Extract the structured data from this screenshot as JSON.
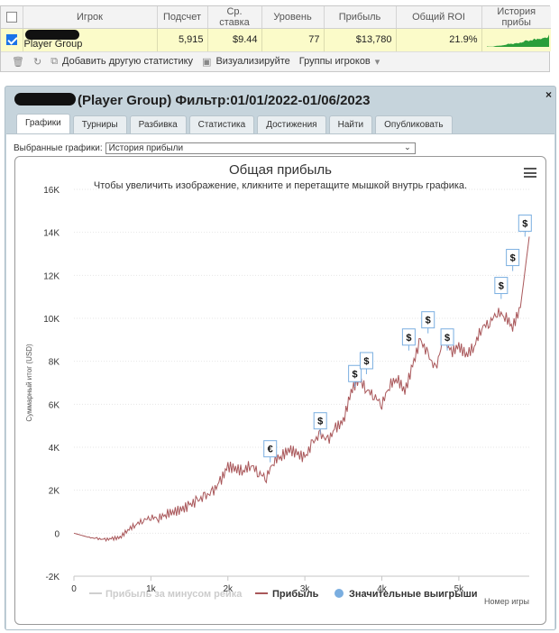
{
  "table": {
    "headers": [
      "Игрок",
      "Подсчет",
      "Ср. ставка",
      "Уровень",
      "Прибыль",
      "Общий ROI",
      "История прибы"
    ],
    "row": {
      "player": "Player Group",
      "count": "5,915",
      "avg_stake": "$9.44",
      "level": "77",
      "profit": "$13,780",
      "roi": "21.9%"
    }
  },
  "toolbar": {
    "delete_icon": "trash-icon",
    "refresh_icon": "refresh-icon",
    "add_stats_label": "Добавить другую статистику",
    "visualize_label": "Визуализируйте",
    "groups_label": "Группы игроков"
  },
  "panel": {
    "title": "(Player Group) Фильтр:01/01/2022-01/06/2023",
    "close": "×",
    "tabs": [
      "Графики",
      "Турниры",
      "Разбивка",
      "Статистика",
      "Достижения",
      "Найти",
      "Опубликовать"
    ],
    "select_label": "Выбранные графики:",
    "select_value": "История прибыли"
  },
  "colors": {
    "profit_line": "#a9575a",
    "rake_line": "#cfcfcf",
    "big_wins": "#7aaee0",
    "sparkline": "#2a9e3a",
    "row_highlight": "#fbfbc9"
  },
  "chart_data": {
    "type": "line",
    "title": "Общая прибыль",
    "subtitle": "Чтобы увеличить изображение, кликните и перетащите мышкой внутрь графика.",
    "ylabel": "Суммарный итог (USD)",
    "xlabel": "Номер игры",
    "xlim": [
      0,
      5915
    ],
    "ylim": [
      -2000,
      16000
    ],
    "x_ticks": [
      "0",
      "1k",
      "2k",
      "3k",
      "4k",
      "5k"
    ],
    "y_ticks": [
      "-2K",
      "0",
      "2K",
      "4K",
      "6K",
      "8K",
      "10K",
      "12K",
      "14K",
      "16K"
    ],
    "grid": true,
    "legend_position": "bottom",
    "series": [
      {
        "name": "Прибыль за минусом рейка",
        "style": "grey",
        "x": [],
        "y": []
      },
      {
        "name": "Прибыль",
        "x": [
          0,
          100,
          200,
          300,
          400,
          500,
          600,
          700,
          800,
          900,
          1000,
          1100,
          1200,
          1300,
          1400,
          1500,
          1600,
          1700,
          1800,
          1900,
          2000,
          2100,
          2200,
          2300,
          2400,
          2500,
          2600,
          2700,
          2800,
          2900,
          3000,
          3100,
          3200,
          3300,
          3400,
          3500,
          3600,
          3700,
          3800,
          3900,
          4000,
          4100,
          4200,
          4300,
          4400,
          4500,
          4600,
          4700,
          4800,
          4900,
          5000,
          5100,
          5200,
          5300,
          5400,
          5500,
          5600,
          5700,
          5800,
          5915
        ],
        "y": [
          0,
          -100,
          -200,
          -250,
          -300,
          -250,
          -200,
          150,
          400,
          600,
          750,
          700,
          900,
          1000,
          1100,
          1300,
          1500,
          1700,
          1900,
          2400,
          3100,
          3000,
          2900,
          3200,
          2800,
          2600,
          3400,
          3600,
          3900,
          3700,
          3500,
          4200,
          4600,
          4300,
          4900,
          5200,
          6600,
          7200,
          6700,
          6400,
          6000,
          6900,
          7200,
          6600,
          7800,
          9000,
          8300,
          7600,
          9100,
          8400,
          8700,
          8300,
          8700,
          9600,
          9800,
          10300,
          10100,
          9600,
          10500,
          13800
        ]
      }
    ],
    "big_wins": [
      {
        "x": 2550,
        "y": 3300,
        "label": "€"
      },
      {
        "x": 3200,
        "y": 4600,
        "label": "$"
      },
      {
        "x": 3650,
        "y": 6800,
        "label": "$"
      },
      {
        "x": 3800,
        "y": 7400,
        "label": "$"
      },
      {
        "x": 4350,
        "y": 8500,
        "label": "$"
      },
      {
        "x": 4600,
        "y": 9300,
        "label": "$"
      },
      {
        "x": 4850,
        "y": 8500,
        "label": "$"
      },
      {
        "x": 5550,
        "y": 10900,
        "label": "$"
      },
      {
        "x": 5700,
        "y": 12200,
        "label": "$"
      },
      {
        "x": 5860,
        "y": 13800,
        "label": "$"
      }
    ],
    "legend": [
      "Прибыль за минусом рейка",
      "Прибыль",
      "Значительные выигрыши"
    ]
  }
}
